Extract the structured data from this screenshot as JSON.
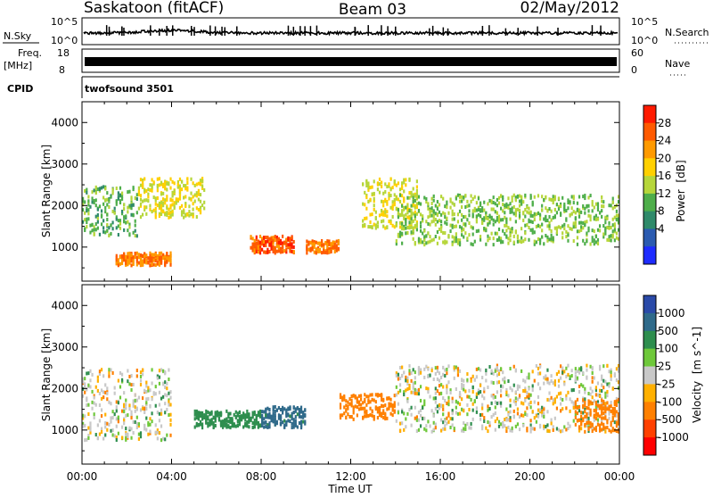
{
  "header": {
    "station": "Saskatoon (fitACF)",
    "beam": "Beam 03",
    "date": "02/May/2012"
  },
  "colors": {
    "power_scale": [
      "#1e2cff",
      "#2b5bb0",
      "#2f8a6a",
      "#4eae4a",
      "#b6d63a",
      "#ffd000",
      "#ff9a00",
      "#ff5a00",
      "#ff1a00"
    ],
    "velocity_scale": [
      "#2a4aa8",
      "#2f6a8a",
      "#2e8e4e",
      "#6ec83a",
      "#c8c8c8",
      "#ffb000",
      "#ff8000",
      "#ff4000",
      "#ff0000"
    ],
    "ground_scatter": "#c8c8c8",
    "line": "#000000"
  },
  "panels": {
    "nsky": {
      "label": "N.Sky",
      "right_label": "N.Search",
      "yticks": [
        "10^5",
        "10^0"
      ],
      "right_yticks": [
        "10^5",
        "10^0"
      ]
    },
    "freq": {
      "label": "Freq.",
      "unit": "[MHz]",
      "right_label": "Nave",
      "yticks": [
        "18",
        "8"
      ],
      "right_yticks": [
        "60",
        "0"
      ]
    },
    "cpid": {
      "label": "CPID",
      "value": "twofsound 3501"
    }
  },
  "chart_data": [
    {
      "type": "heatmap",
      "title": "Power",
      "quantity": "Power",
      "unit": "[dB]",
      "ylabel": "Slant Range [km]",
      "ylim": [
        180,
        4500
      ],
      "xlim": [
        "00:00",
        "24:00"
      ],
      "yticks": [
        "1000",
        "2000",
        "3000",
        "4000"
      ],
      "colorbar_ticks": [
        "28",
        "24",
        "20",
        "16",
        "12",
        "8",
        "4"
      ],
      "features": [
        {
          "from": "00:00",
          "to": "02:30",
          "range_km": [
            1300,
            2500
          ],
          "power_db": 12
        },
        {
          "from": "01:30",
          "to": "04:00",
          "range_km": [
            600,
            900
          ],
          "power_db": 26
        },
        {
          "from": "02:30",
          "to": "05:30",
          "range_km": [
            1750,
            2700
          ],
          "power_db": 18
        },
        {
          "from": "07:30",
          "to": "09:30",
          "range_km": [
            900,
            1300
          ],
          "power_db": 28
        },
        {
          "from": "10:00",
          "to": "11:30",
          "range_km": [
            900,
            1200
          ],
          "power_db": 26
        },
        {
          "from": "12:30",
          "to": "15:00",
          "range_km": [
            1500,
            2700
          ],
          "power_db": 18
        },
        {
          "from": "14:00",
          "to": "24:00",
          "range_km": [
            1100,
            2300
          ],
          "power_db": 14
        }
      ]
    },
    {
      "type": "heatmap",
      "title": "Velocity",
      "quantity": "Velocity",
      "unit": "[m s^-1]",
      "ylabel": "Slant Range [km]",
      "ylim": [
        180,
        4500
      ],
      "xlim": [
        "00:00",
        "24:00"
      ],
      "yticks": [
        "1000",
        "2000",
        "3000",
        "4000"
      ],
      "colorbar_ticks": [
        "1000",
        "500",
        "100",
        "25",
        "-25",
        "-100",
        "-500",
        "-1000"
      ],
      "features": [
        {
          "from": "00:00",
          "to": "04:00",
          "range_km": [
            800,
            2500
          ],
          "velocity_ms": 0
        },
        {
          "from": "05:00",
          "to": "08:00",
          "range_km": [
            1100,
            1500
          ],
          "velocity_ms": 300
        },
        {
          "from": "08:00",
          "to": "10:00",
          "range_km": [
            1100,
            1600
          ],
          "velocity_ms": 600
        },
        {
          "from": "11:30",
          "to": "14:00",
          "range_km": [
            1300,
            1900
          ],
          "velocity_ms": -300
        },
        {
          "from": "14:00",
          "to": "24:00",
          "range_km": [
            1000,
            2600
          ],
          "velocity_ms": 0
        },
        {
          "from": "22:00",
          "to": "24:00",
          "range_km": [
            1000,
            1800
          ],
          "velocity_ms": -300
        }
      ]
    }
  ],
  "xaxis": {
    "label": "Time UT",
    "ticks": [
      "00:00",
      "04:00",
      "08:00",
      "12:00",
      "16:00",
      "20:00",
      "00:00"
    ]
  }
}
